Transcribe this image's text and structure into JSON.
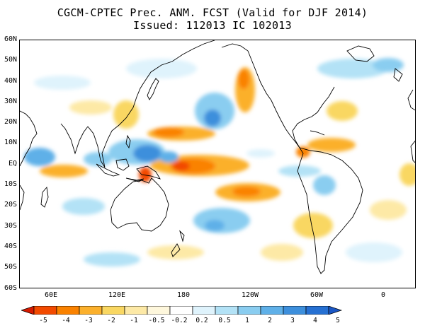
{
  "title": {
    "line1": "CGCM-CPTEC Prec. ANM. FCST  (Valid for DJF 2014)",
    "line2": "Issued:  112013 IC 102013"
  },
  "map": {
    "lat_labels": [
      "60N",
      "50N",
      "40N",
      "30N",
      "20N",
      "10N",
      "EQ",
      "10S",
      "20S",
      "30S",
      "40S",
      "50S",
      "60S"
    ],
    "lon_labels": [
      "60E",
      "120E",
      "180",
      "120W",
      "60W",
      "0"
    ],
    "lat_range": [
      -60,
      60
    ],
    "lon_range": [
      30,
      390
    ]
  },
  "colorbar": {
    "labels": [
      "-5",
      "-4",
      "-3",
      "-2",
      "-1",
      "-0.5",
      "-0.2",
      "0.2",
      "0.5",
      "1",
      "2",
      "3",
      "4",
      "5"
    ],
    "colors": [
      "#d61a00",
      "#f24a00",
      "#fa8200",
      "#fbb02c",
      "#f9d762",
      "#fde9a6",
      "#fef7dc",
      "#ffffff",
      "#dff3fc",
      "#b3e2f6",
      "#8acdf0",
      "#5fb0e8",
      "#3d8fdc",
      "#2670d2",
      "#1a56c4"
    ]
  }
}
